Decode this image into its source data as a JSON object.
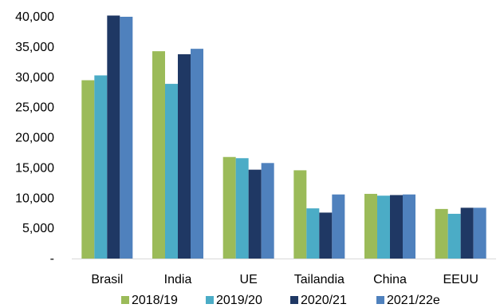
{
  "chart_data": {
    "type": "bar",
    "title": "",
    "xlabel": "",
    "ylabel": "",
    "categories": [
      "Brasil",
      "India",
      "UE",
      "Tailandia",
      "China",
      "EEUU"
    ],
    "series": [
      {
        "name": "2018/19",
        "color": "#9BBB59",
        "values": [
          29500,
          34300,
          16800,
          14600,
          10700,
          8200
        ]
      },
      {
        "name": "2019/20",
        "color": "#4BACC6",
        "values": [
          30300,
          28900,
          16600,
          8300,
          10400,
          7400
        ]
      },
      {
        "name": "2020/21",
        "color": "#1F3864",
        "values": [
          40200,
          33800,
          14700,
          7600,
          10500,
          8400
        ]
      },
      {
        "name": "2021/22e",
        "color": "#4F81BD",
        "values": [
          40000,
          34700,
          15800,
          10600,
          10600,
          8400
        ]
      }
    ],
    "ylim": [
      0,
      40000
    ],
    "yticks": [
      {
        "value": 0,
        "label": "-"
      },
      {
        "value": 5000,
        "label": "5,000"
      },
      {
        "value": 10000,
        "label": "10,000"
      },
      {
        "value": 15000,
        "label": "15,000"
      },
      {
        "value": 20000,
        "label": "20,000"
      },
      {
        "value": 25000,
        "label": "25,000"
      },
      {
        "value": 30000,
        "label": "30,000"
      },
      {
        "value": 35000,
        "label": "35,000"
      },
      {
        "value": 40000,
        "label": "40,000"
      }
    ],
    "grid": false,
    "legend_position": "bottom"
  }
}
